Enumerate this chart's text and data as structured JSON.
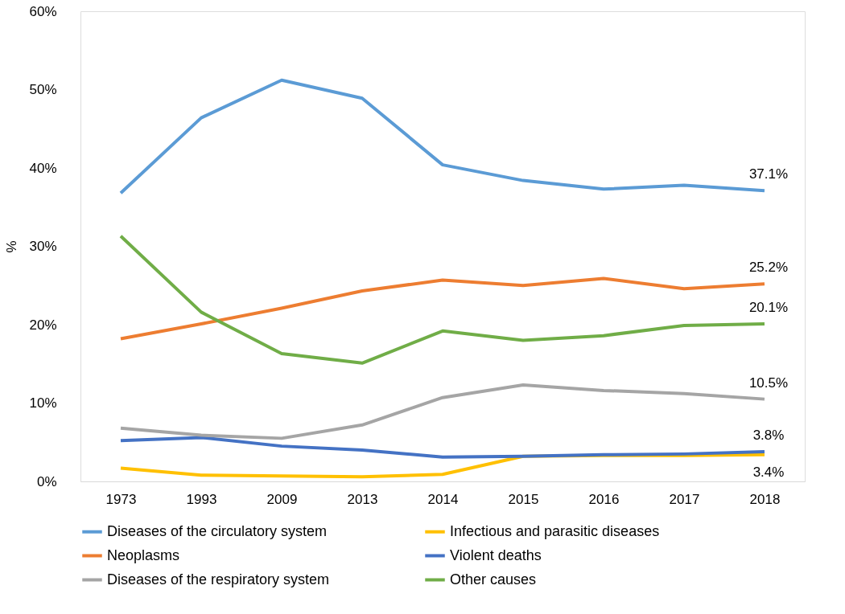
{
  "chart_data": {
    "type": "line",
    "ylabel": "%",
    "categories": [
      "1973",
      "1993",
      "2009",
      "2013",
      "2014",
      "2015",
      "2016",
      "2017",
      "2018"
    ],
    "ylim": [
      0,
      60
    ],
    "yticks": [
      {
        "value": 0,
        "label": "0%"
      },
      {
        "value": 10,
        "label": "10%"
      },
      {
        "value": 20,
        "label": "20%"
      },
      {
        "value": 30,
        "label": "30%"
      },
      {
        "value": 40,
        "label": "40%"
      },
      {
        "value": 50,
        "label": "50%"
      },
      {
        "value": 60,
        "label": "60%"
      }
    ],
    "grid": false,
    "legend": "bottom",
    "marker": "none",
    "line_style": "solid",
    "series": [
      {
        "name": "Diseases of the circulatory system",
        "color": "#5b9bd5",
        "values": [
          36.8,
          46.4,
          51.2,
          48.9,
          40.4,
          38.4,
          37.3,
          37.8,
          37.1
        ],
        "value_labels": [
          null,
          null,
          null,
          null,
          null,
          null,
          null,
          null,
          "37.1%"
        ]
      },
      {
        "name": "Infectious and parasitic diseases",
        "color": "#ffc000",
        "values": [
          1.7,
          0.8,
          0.7,
          0.6,
          0.9,
          3.2,
          3.3,
          3.3,
          3.4
        ],
        "value_labels": [
          null,
          null,
          null,
          null,
          null,
          null,
          null,
          null,
          "3.4%"
        ]
      },
      {
        "name": "Neoplasms",
        "color": "#ed7d31",
        "values": [
          18.2,
          20.1,
          22.1,
          24.3,
          25.7,
          25.0,
          25.9,
          24.6,
          25.2
        ],
        "value_labels": [
          null,
          null,
          null,
          null,
          null,
          null,
          null,
          null,
          "25.2%"
        ]
      },
      {
        "name": "Violent deaths",
        "color": "#4472c4",
        "values": [
          5.2,
          5.6,
          4.5,
          4.0,
          3.1,
          3.2,
          3.4,
          3.5,
          3.8
        ],
        "value_labels": [
          null,
          null,
          null,
          null,
          null,
          null,
          null,
          null,
          "3.8%"
        ]
      },
      {
        "name": "Diseases of the respiratory system",
        "color": "#a5a5a5",
        "values": [
          6.8,
          5.9,
          5.5,
          7.2,
          10.7,
          12.3,
          11.6,
          11.2,
          10.5
        ],
        "value_labels": [
          null,
          null,
          null,
          null,
          null,
          null,
          null,
          null,
          "10.5%"
        ]
      },
      {
        "name": "Other causes",
        "color": "#70ad47",
        "values": [
          31.3,
          21.6,
          16.3,
          15.1,
          19.2,
          18.0,
          18.6,
          19.9,
          20.1
        ],
        "value_labels": [
          null,
          null,
          null,
          null,
          null,
          null,
          null,
          null,
          "20.1%"
        ]
      }
    ]
  }
}
